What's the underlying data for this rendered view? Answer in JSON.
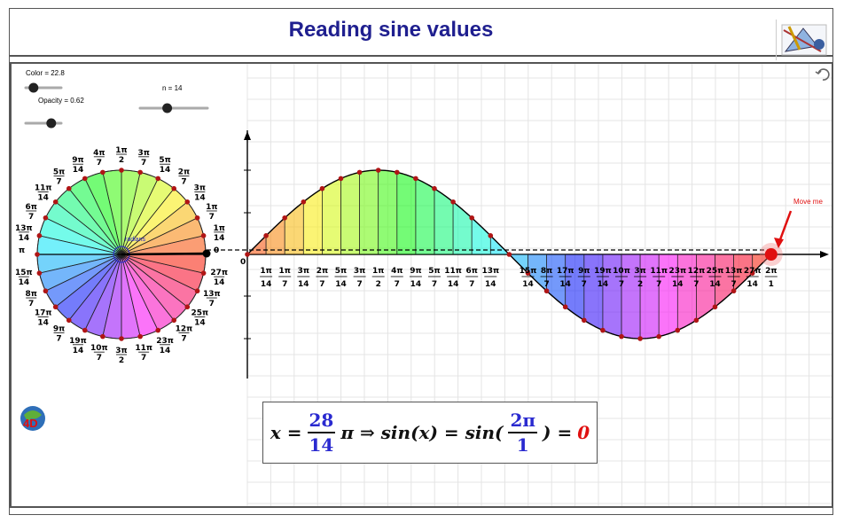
{
  "header": {
    "title": "Reading sine values"
  },
  "sliders": [
    {
      "label": "Color = 22.8",
      "value": 0.12
    },
    {
      "label": "Opacity = 0.62",
      "value": 0.62
    },
    {
      "label": "n = 14",
      "value": 0.35
    }
  ],
  "annotation": {
    "radians_label": "radians",
    "move_me": "Move me"
  },
  "axis_labels": {
    "origin": "0",
    "pi_left": "π",
    "zero_right": "0"
  },
  "formula": {
    "lhs_var": "x =",
    "num1": "28",
    "den1": "14",
    "mid": "π ⇒ sin(x) = sin(",
    "num2": "2π",
    "den2": "1",
    "close": ") =",
    "result": "0"
  },
  "n": 14,
  "colors": {
    "title": "#1f1f8f",
    "point": "#e01010",
    "grid": "#e2e2e2",
    "accent": "#2a2ad0"
  }
}
